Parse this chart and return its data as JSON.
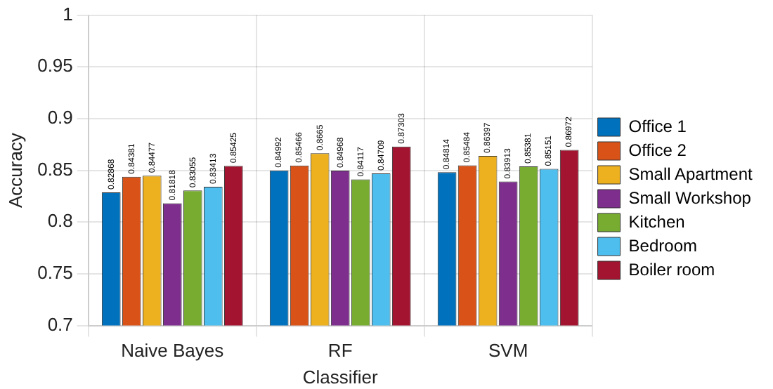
{
  "chart_data": {
    "type": "bar",
    "xlabel": "Classifier",
    "ylabel": "Accuracy",
    "categories": [
      "Naive Bayes",
      "RF",
      "SVM"
    ],
    "series": [
      {
        "name": "Office 1",
        "color": "#0072bd",
        "values": [
          0.82868,
          0.84992,
          0.84814
        ]
      },
      {
        "name": "Office 2",
        "color": "#d95319",
        "values": [
          0.84381,
          0.85466,
          0.85484
        ]
      },
      {
        "name": "Small Apartment",
        "color": "#edb120",
        "values": [
          0.84477,
          0.8665,
          0.86397
        ]
      },
      {
        "name": "Small Workshop",
        "color": "#7e2f8e",
        "values": [
          0.81818,
          0.84968,
          0.83913
        ]
      },
      {
        "name": "Kitchen",
        "color": "#77ac30",
        "values": [
          0.83055,
          0.84117,
          0.85381
        ]
      },
      {
        "name": "Bedroom",
        "color": "#4dbeee",
        "values": [
          0.83413,
          0.84709,
          0.85151
        ]
      },
      {
        "name": "Boiler room",
        "color": "#a2142f",
        "values": [
          0.85425,
          0.87303,
          0.86972
        ]
      }
    ],
    "ylim": [
      0.7,
      1
    ],
    "yticks": [
      0.7,
      0.75,
      0.8,
      0.85,
      0.9,
      0.95,
      1
    ],
    "grid": true,
    "legend": "right",
    "data_labels": true
  }
}
